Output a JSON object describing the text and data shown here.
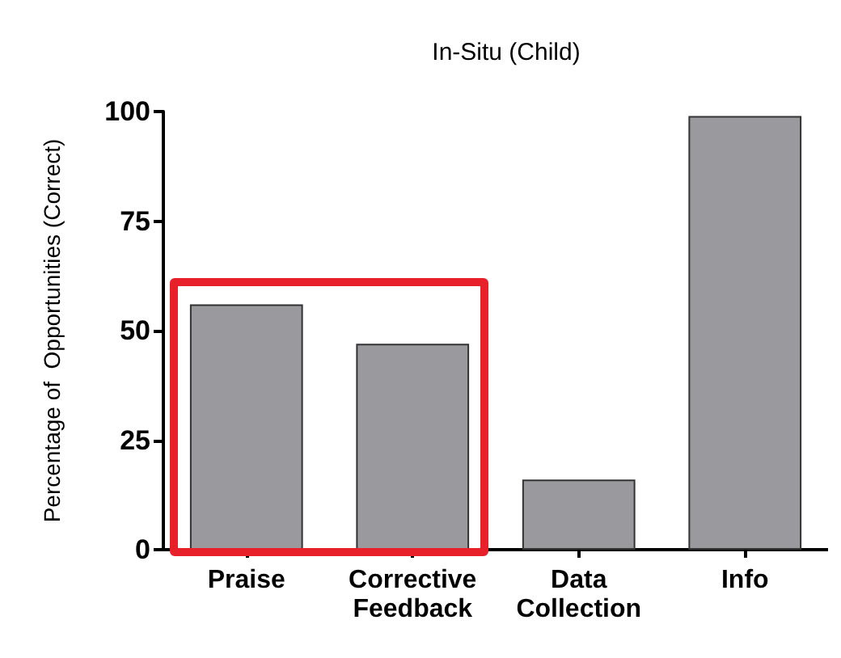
{
  "chart_data": {
    "type": "bar",
    "title": "In-Situ (Child)",
    "ylabel": "Percentage of  Opportunities (Correct)",
    "categories": [
      "Praise",
      "Corrective\nFeedback",
      "Data\nCollection",
      "Info"
    ],
    "values": [
      56,
      47,
      16,
      99
    ],
    "color": "#9a999e",
    "ylim": [
      0,
      100
    ],
    "yticks": [
      0,
      25,
      50,
      75,
      100
    ],
    "grid": false
  }
}
